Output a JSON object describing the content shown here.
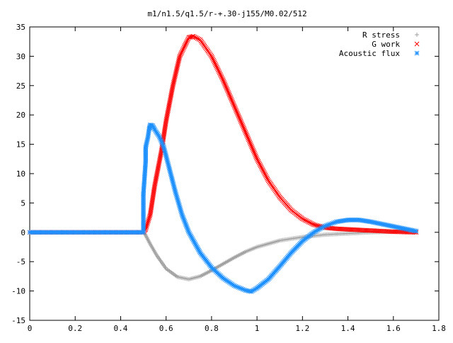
{
  "chart_data": {
    "type": "scatter",
    "title": "m1/n1.5/q1.5/r-+.30-j155/M0.02/512",
    "xlabel": "",
    "ylabel": "",
    "xlim": [
      0,
      1.8
    ],
    "ylim": [
      -15,
      35
    ],
    "x_ticks": [
      "0",
      "0.2",
      "0.4",
      "0.6",
      "0.8",
      "1",
      "1.2",
      "1.4",
      "1.6",
      "1.8"
    ],
    "y_ticks": [
      "35",
      "30",
      "25",
      "20",
      "15",
      "10",
      "5",
      "0",
      "-5",
      "-10",
      "-15"
    ],
    "grid": false,
    "legend_position": "top-right",
    "series": [
      {
        "name": "R stress",
        "marker": "+",
        "color": "#a0a0a0",
        "points": [
          [
            0.0,
            0
          ],
          [
            0.1,
            0
          ],
          [
            0.2,
            0
          ],
          [
            0.3,
            0
          ],
          [
            0.4,
            0
          ],
          [
            0.5,
            0
          ],
          [
            0.51,
            -0.5
          ],
          [
            0.53,
            -2.0
          ],
          [
            0.56,
            -4.0
          ],
          [
            0.6,
            -6.2
          ],
          [
            0.65,
            -7.6
          ],
          [
            0.7,
            -8.0
          ],
          [
            0.75,
            -7.5
          ],
          [
            0.8,
            -6.5
          ],
          [
            0.85,
            -5.4
          ],
          [
            0.9,
            -4.3
          ],
          [
            0.95,
            -3.3
          ],
          [
            1.0,
            -2.5
          ],
          [
            1.1,
            -1.4
          ],
          [
            1.2,
            -0.8
          ],
          [
            1.3,
            -0.4
          ],
          [
            1.4,
            -0.2
          ],
          [
            1.5,
            0.0
          ],
          [
            1.6,
            0.1
          ],
          [
            1.7,
            0.1
          ]
        ]
      },
      {
        "name": "G work",
        "marker": "x",
        "color": "#ff0000",
        "points": [
          [
            0.0,
            0
          ],
          [
            0.1,
            0
          ],
          [
            0.2,
            0
          ],
          [
            0.3,
            0
          ],
          [
            0.4,
            0
          ],
          [
            0.5,
            0
          ],
          [
            0.51,
            0.5
          ],
          [
            0.53,
            3
          ],
          [
            0.55,
            8
          ],
          [
            0.58,
            14
          ],
          [
            0.6,
            19
          ],
          [
            0.63,
            25
          ],
          [
            0.66,
            30
          ],
          [
            0.7,
            33.2
          ],
          [
            0.72,
            33.4
          ],
          [
            0.75,
            32.8
          ],
          [
            0.8,
            30
          ],
          [
            0.85,
            26
          ],
          [
            0.9,
            21.5
          ],
          [
            0.95,
            17
          ],
          [
            1.0,
            12.5
          ],
          [
            1.05,
            8.8
          ],
          [
            1.1,
            6
          ],
          [
            1.15,
            3.8
          ],
          [
            1.2,
            2.3
          ],
          [
            1.25,
            1.3
          ],
          [
            1.3,
            0.8
          ],
          [
            1.35,
            0.6
          ],
          [
            1.4,
            0.5
          ],
          [
            1.45,
            0.4
          ],
          [
            1.5,
            0.3
          ],
          [
            1.6,
            0.1
          ],
          [
            1.7,
            0
          ]
        ]
      },
      {
        "name": "Acoustic flux",
        "marker": "*",
        "color": "#1e90ff",
        "points": [
          [
            0.0,
            0
          ],
          [
            0.1,
            0
          ],
          [
            0.2,
            0
          ],
          [
            0.3,
            0
          ],
          [
            0.4,
            0
          ],
          [
            0.5,
            0
          ],
          [
            0.5,
            6.5
          ],
          [
            0.51,
            12
          ],
          [
            0.51,
            14.5
          ],
          [
            0.52,
            16.2
          ],
          [
            0.525,
            17.5
          ],
          [
            0.53,
            18.3
          ],
          [
            0.54,
            18.2
          ],
          [
            0.55,
            17.5
          ],
          [
            0.57,
            16.3
          ],
          [
            0.59,
            14.5
          ],
          [
            0.61,
            11.5
          ],
          [
            0.64,
            7
          ],
          [
            0.67,
            3
          ],
          [
            0.7,
            0
          ],
          [
            0.75,
            -3.5
          ],
          [
            0.8,
            -6
          ],
          [
            0.85,
            -7.8
          ],
          [
            0.9,
            -9.1
          ],
          [
            0.95,
            -9.9
          ],
          [
            0.975,
            -10.1
          ],
          [
            1.0,
            -9.5
          ],
          [
            1.05,
            -8
          ],
          [
            1.1,
            -5.8
          ],
          [
            1.15,
            -3.5
          ],
          [
            1.2,
            -1.5
          ],
          [
            1.25,
            0
          ],
          [
            1.3,
            1.1
          ],
          [
            1.35,
            1.8
          ],
          [
            1.4,
            2.1
          ],
          [
            1.45,
            2.1
          ],
          [
            1.5,
            1.8
          ],
          [
            1.55,
            1.4
          ],
          [
            1.6,
            1
          ],
          [
            1.65,
            0.6
          ],
          [
            1.7,
            0.2
          ]
        ]
      }
    ]
  }
}
